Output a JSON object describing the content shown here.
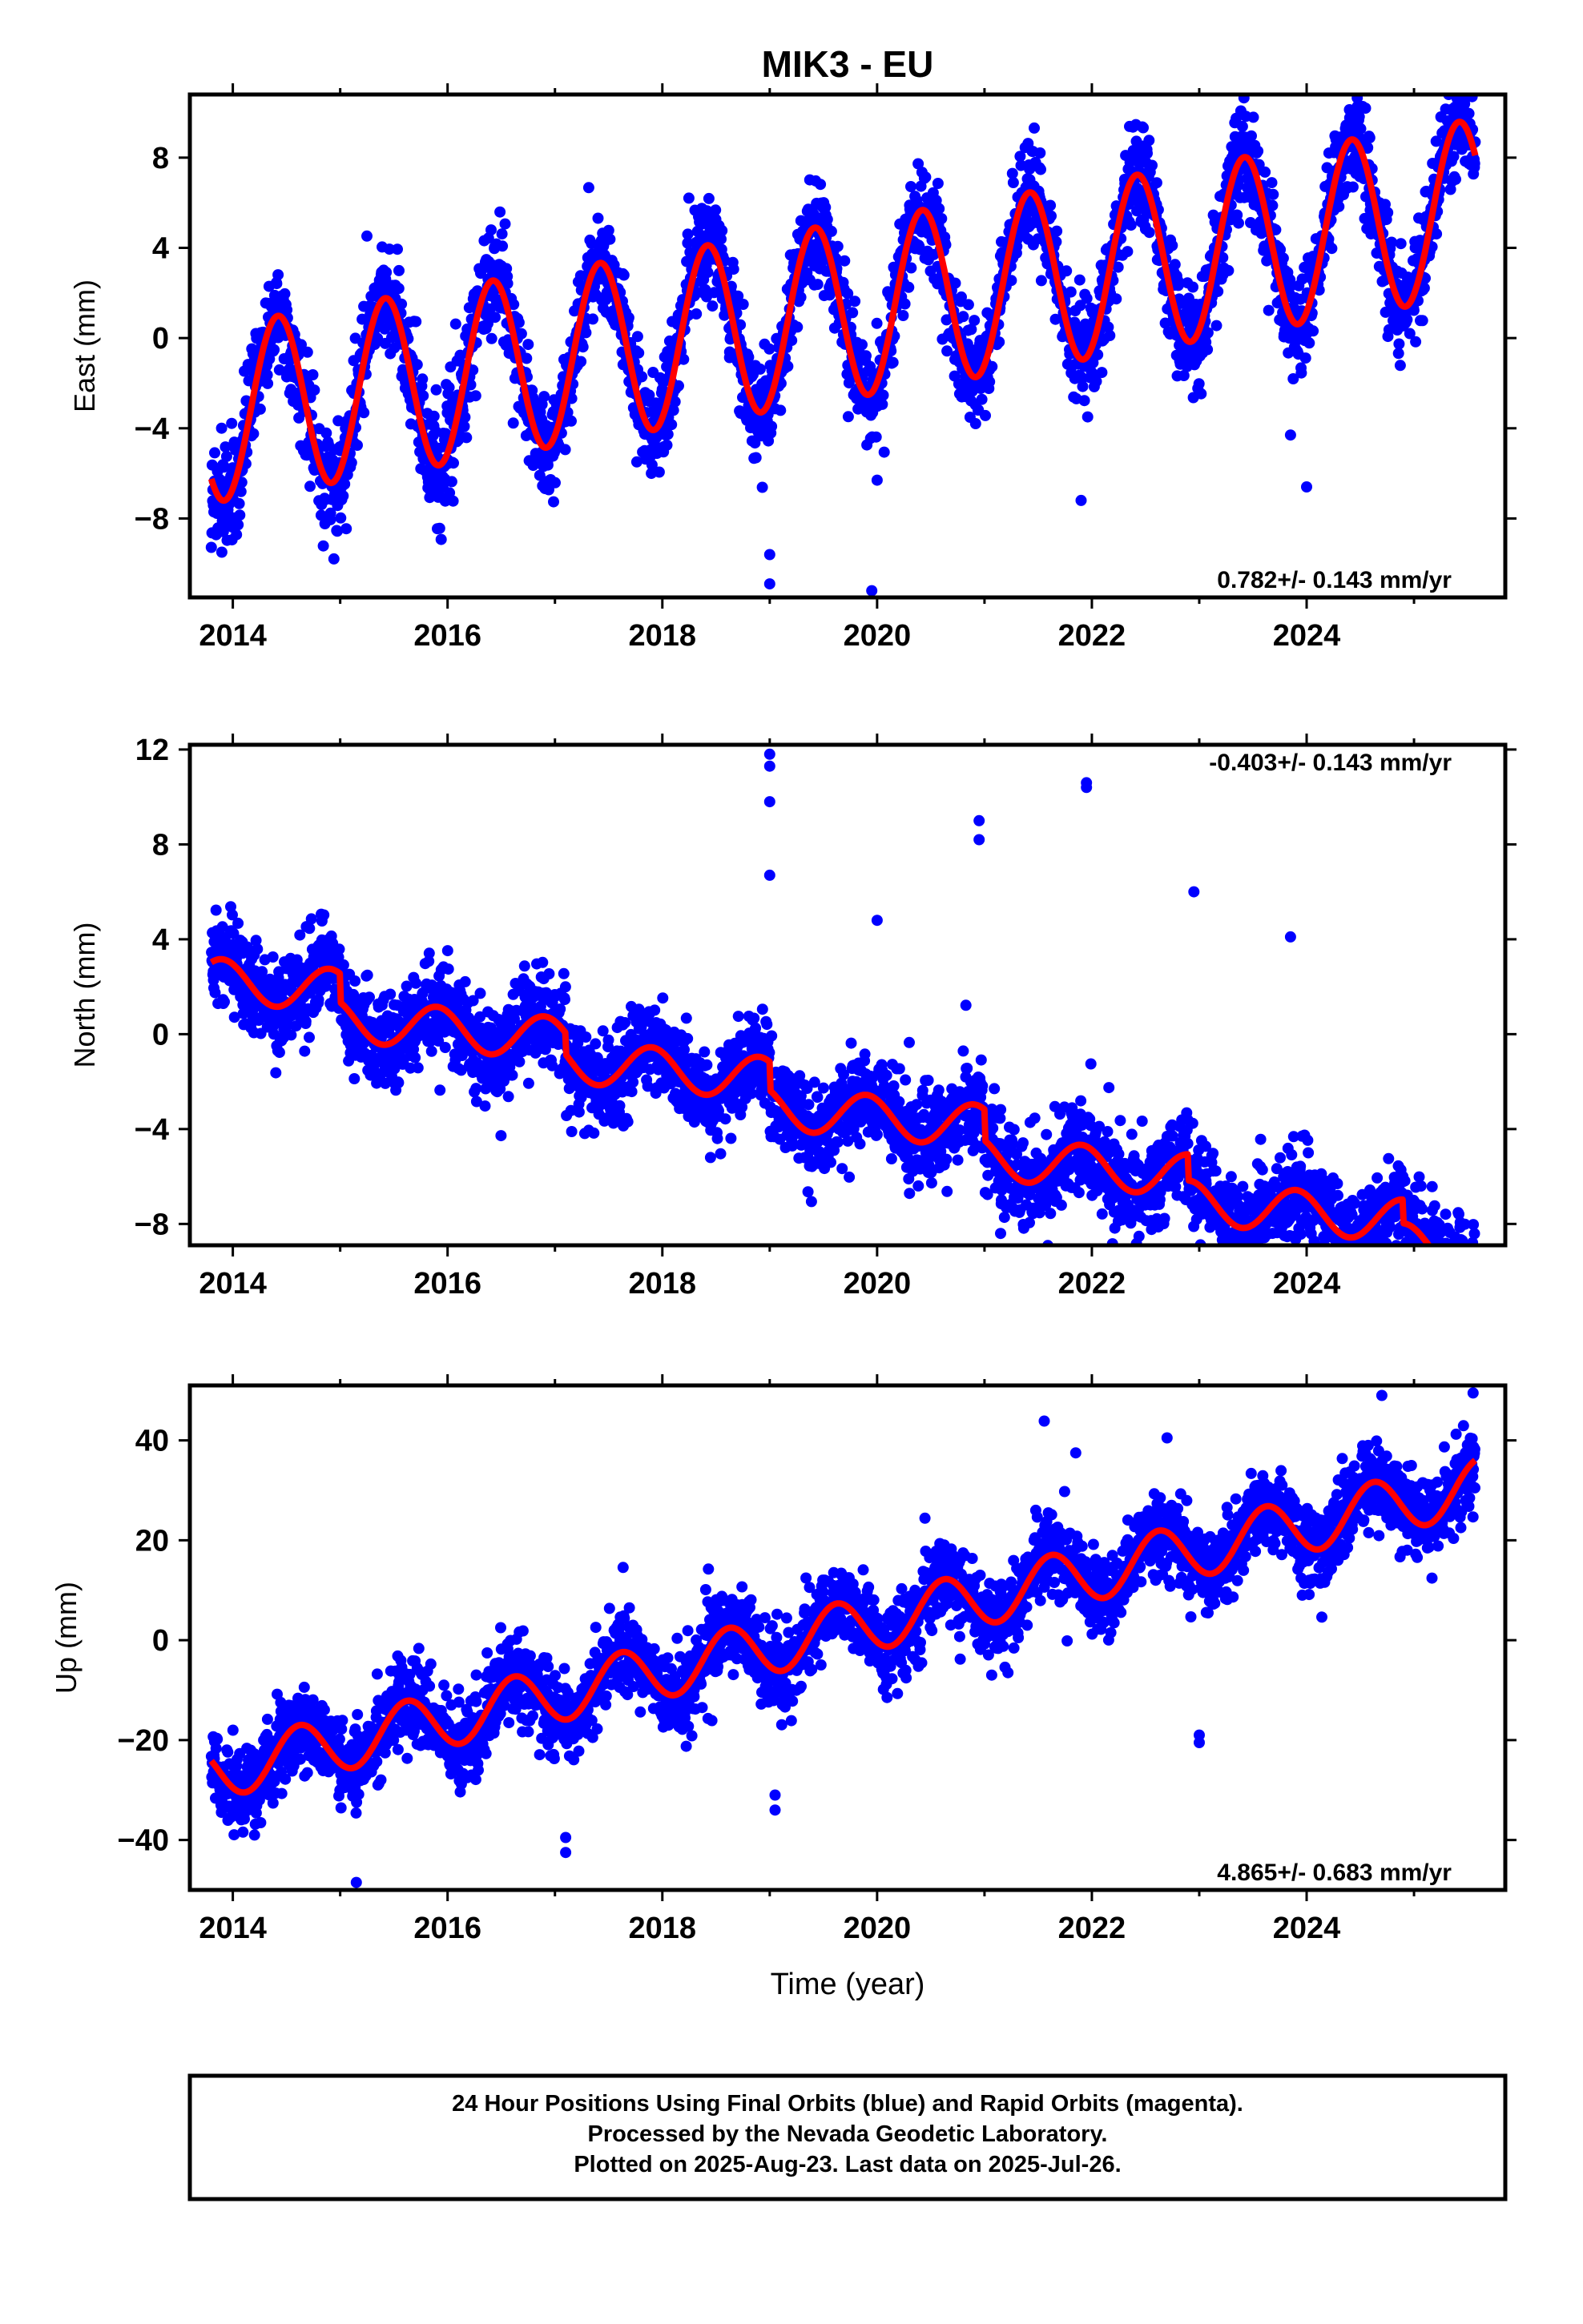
{
  "title": "MIK3 - EU",
  "colors": {
    "final_orbits": "#0000ff",
    "model_fit": "#ff0000",
    "frame": "#000000",
    "background": "#ffffff"
  },
  "chart_data": [
    {
      "type": "scatter",
      "panel": "east",
      "title": "MIK3 - EU",
      "xlabel": "",
      "ylabel": "East (mm)",
      "xlim": [
        2013.6,
        2025.85
      ],
      "ylim": [
        -11.5,
        10.8
      ],
      "x_ticks": [
        2014,
        2016,
        2018,
        2020,
        2022,
        2024
      ],
      "y_ticks": [
        -8,
        -4,
        0,
        4,
        8
      ],
      "rate_label": "0.782+/- 0.143 mm/yr",
      "rate_position": "bottom-right",
      "grid": false,
      "series": [
        {
          "kind": "points",
          "color": "#0000ff",
          "x_start": 2013.8,
          "x_end": 2025.57,
          "points_per_year": 300,
          "rate_mm_per_yr": 0.782,
          "value_at_start": -3.4,
          "annual_amplitude": 3.9,
          "annual_peak": 0.42,
          "scatter_sd": 1.1,
          "outliers": [
            [
              2019.0,
              -10.9
            ],
            [
              2019.0,
              -9.6
            ],
            [
              2019.95,
              -11.2
            ],
            [
              2024.0,
              -6.6
            ],
            [
              2023.85,
              -4.3
            ],
            [
              2021.9,
              -7.2
            ],
            [
              2020.0,
              -6.3
            ]
          ]
        },
        {
          "kind": "line",
          "color": "#ff0000",
          "x_start": 2013.8,
          "x_end": 2025.57,
          "rate_mm_per_yr": 0.782,
          "value_at_start": -3.4,
          "annual_amplitude": 3.9,
          "annual_peak": 0.42
        }
      ]
    },
    {
      "type": "scatter",
      "panel": "north",
      "xlabel": "",
      "ylabel": "North (mm)",
      "xlim": [
        2013.6,
        2025.85
      ],
      "ylim": [
        -8.9,
        12.2
      ],
      "x_ticks": [
        2014,
        2016,
        2018,
        2020,
        2022,
        2024
      ],
      "y_ticks": [
        -8,
        -4,
        0,
        4,
        8,
        12
      ],
      "rate_label": "-0.403+/- 0.143 mm/yr",
      "rate_position": "top-right",
      "grid": false,
      "series": [
        {
          "kind": "points",
          "color": "#0000ff",
          "x_start": 2013.8,
          "x_end": 2025.57,
          "points_per_year": 300,
          "rate_mm_per_yr": -0.403,
          "value_at_start": 2.3,
          "annual_amplitude": 0.9,
          "annual_peak": 0.9,
          "steps": [
            [
              2015.0,
              -1.2
            ],
            [
              2017.1,
              -0.9
            ],
            [
              2019.0,
              -1.2
            ],
            [
              2021.0,
              -1.3
            ],
            [
              2022.9,
              -1.1
            ],
            [
              2024.9,
              -1.0
            ]
          ],
          "scatter_sd": 0.95,
          "outliers": [
            [
              2019.0,
              11.8
            ],
            [
              2019.0,
              11.3
            ],
            [
              2019.0,
              9.8
            ],
            [
              2019.0,
              6.7
            ],
            [
              2021.95,
              10.4
            ],
            [
              2021.95,
              10.6
            ],
            [
              2020.95,
              9.0
            ],
            [
              2020.95,
              8.2
            ],
            [
              2022.95,
              6.0
            ],
            [
              2021.15,
              -6.5
            ],
            [
              2021.15,
              -8.4
            ],
            [
              2022.05,
              -6.6
            ],
            [
              2020.0,
              4.8
            ],
            [
              2023.85,
              4.1
            ]
          ]
        },
        {
          "kind": "line",
          "color": "#ff0000",
          "x_start": 2013.8,
          "x_end": 2025.57,
          "rate_mm_per_yr": -0.403,
          "value_at_start": 2.3,
          "annual_amplitude": 0.9,
          "annual_peak": 0.9,
          "steps": [
            [
              2015.0,
              -1.2
            ],
            [
              2017.1,
              -0.9
            ],
            [
              2019.0,
              -1.2
            ],
            [
              2021.0,
              -1.3
            ],
            [
              2022.9,
              -1.1
            ],
            [
              2024.9,
              -1.0
            ]
          ]
        }
      ]
    },
    {
      "type": "scatter",
      "panel": "up",
      "xlabel": "Time (year)",
      "ylabel": "Up (mm)",
      "xlim": [
        2013.6,
        2025.85
      ],
      "ylim": [
        -50,
        51
      ],
      "x_ticks": [
        2014,
        2016,
        2018,
        2020,
        2022,
        2024
      ],
      "y_ticks": [
        -40,
        -20,
        0,
        20,
        40
      ],
      "rate_label": "4.865+/- 0.683 mm/yr",
      "rate_position": "bottom-right",
      "grid": false,
      "series": [
        {
          "kind": "points",
          "color": "#0000ff",
          "x_start": 2013.8,
          "x_end": 2025.57,
          "points_per_year": 300,
          "rate_mm_per_yr": 4.865,
          "value_at_start": -26.5,
          "annual_amplitude": 5.5,
          "annual_peak": 0.62,
          "scatter_sd": 4.0,
          "outliers": [
            [
              2023.0,
              -19.0
            ],
            [
              2023.0,
              -20.5
            ],
            [
              2017.1,
              -39.5
            ],
            [
              2017.1,
              -42.5
            ],
            [
              2015.15,
              -48.5
            ],
            [
              2019.05,
              -34.0
            ],
            [
              2019.05,
              -31.0
            ],
            [
              2024.7,
              49.0
            ],
            [
              2025.55,
              49.5
            ],
            [
              2022.7,
              40.5
            ],
            [
              2021.85,
              37.5
            ]
          ]
        },
        {
          "kind": "line",
          "color": "#ff0000",
          "x_start": 2013.8,
          "x_end": 2025.57,
          "rate_mm_per_yr": 4.865,
          "value_at_start": -26.5,
          "annual_amplitude": 5.5,
          "annual_peak": 0.62
        }
      ]
    }
  ],
  "footer": {
    "line1": "24 Hour Positions Using Final Orbits (blue) and Rapid Orbits (magenta).",
    "line2": "Processed by the Nevada Geodetic Laboratory.",
    "line3": "Plotted on 2025-Aug-23. Last data on 2025-Jul-26."
  }
}
